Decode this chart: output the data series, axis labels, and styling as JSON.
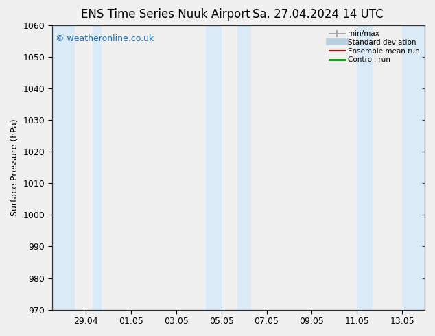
{
  "title_left": "ENS Time Series Nuuk Airport",
  "title_right": "Sa. 27.04.2024 14 UTC",
  "ylabel": "Surface Pressure (hPa)",
  "ylim": [
    970,
    1060
  ],
  "yticks": [
    970,
    980,
    990,
    1000,
    1010,
    1020,
    1030,
    1040,
    1050,
    1060
  ],
  "xlim_days": [
    0.0,
    16.5
  ],
  "xtick_labels": [
    "29.04",
    "01.05",
    "03.05",
    "05.05",
    "07.05",
    "09.05",
    "11.05",
    "13.05"
  ],
  "xtick_positions": [
    1.5,
    3.5,
    5.5,
    7.5,
    9.5,
    11.5,
    13.5,
    15.5
  ],
  "shaded_bands": [
    {
      "x_start": 0.0,
      "x_end": 1.0
    },
    {
      "x_start": 1.8,
      "x_end": 2.2
    },
    {
      "x_start": 6.8,
      "x_end": 7.5
    },
    {
      "x_start": 8.2,
      "x_end": 8.8
    },
    {
      "x_start": 13.5,
      "x_end": 14.2
    },
    {
      "x_start": 15.5,
      "x_end": 16.5
    }
  ],
  "band_color": "#daeaf6",
  "plot_bg_color": "#f0f0f0",
  "background_color": "#f0f0f0",
  "watermark_text": "© weatheronline.co.uk",
  "watermark_color": "#1a6fc4",
  "legend_labels": [
    "min/max",
    "Standard deviation",
    "Ensemble mean run",
    "Controll run"
  ],
  "legend_colors": [
    "#999999",
    "#b8cfe0",
    "#cc0000",
    "#009900"
  ],
  "legend_lws": [
    1.2,
    7,
    1.5,
    2.0
  ],
  "title_fontsize": 12,
  "tick_fontsize": 9,
  "ylabel_fontsize": 9,
  "spine_color": "#333333"
}
